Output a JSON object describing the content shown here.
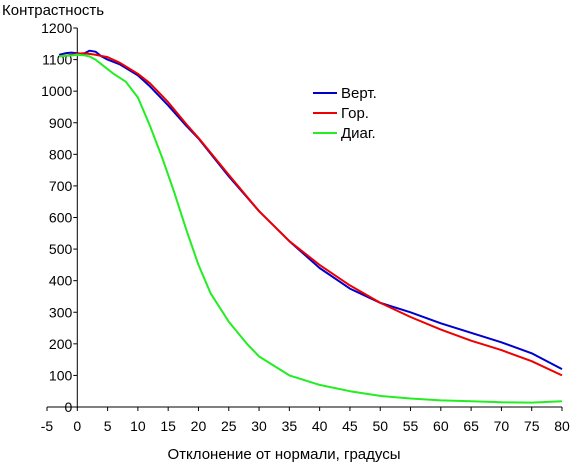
{
  "chart_data": {
    "type": "line",
    "title": "",
    "ylabel": "Контрастность",
    "xlabel": "Отклонение от нормали, градусы",
    "xlim": [
      -5,
      80
    ],
    "ylim": [
      0,
      1200
    ],
    "x_ticks": [
      -5,
      0,
      5,
      10,
      15,
      20,
      25,
      30,
      35,
      40,
      45,
      50,
      55,
      60,
      65,
      70,
      75,
      80
    ],
    "y_ticks": [
      0,
      100,
      200,
      300,
      400,
      500,
      600,
      700,
      800,
      900,
      1000,
      1100,
      1200
    ],
    "grid": false,
    "legend_position": "upper-right",
    "series": [
      {
        "name": "Верт.",
        "color": "#0000cc",
        "x": [
          -3,
          -2,
          -1,
          0,
          1,
          2,
          3,
          4,
          5,
          7,
          10,
          12,
          15,
          18,
          20,
          25,
          30,
          35,
          40,
          45,
          50,
          55,
          60,
          65,
          70,
          75,
          80
        ],
        "y": [
          1115,
          1120,
          1122,
          1120,
          1118,
          1128,
          1125,
          1110,
          1100,
          1085,
          1050,
          1015,
          955,
          890,
          850,
          730,
          620,
          525,
          440,
          375,
          330,
          300,
          265,
          235,
          205,
          170,
          120
        ]
      },
      {
        "name": "Гор.",
        "color": "#ee0000",
        "x": [
          -3,
          -2,
          -1,
          0,
          1,
          2,
          3,
          5,
          7,
          10,
          12,
          15,
          18,
          20,
          25,
          30,
          35,
          40,
          45,
          50,
          55,
          60,
          65,
          70,
          75,
          80
        ],
        "y": [
          1110,
          1112,
          1115,
          1118,
          1120,
          1118,
          1115,
          1108,
          1090,
          1055,
          1025,
          965,
          895,
          852,
          735,
          620,
          525,
          450,
          385,
          330,
          285,
          245,
          210,
          180,
          145,
          100
        ]
      },
      {
        "name": "Диаг.",
        "color": "#22ee22",
        "x": [
          -3,
          -2,
          -1,
          0,
          1,
          2,
          3,
          4,
          5,
          6,
          8,
          10,
          12,
          14,
          16,
          18,
          20,
          22,
          25,
          28,
          30,
          35,
          40,
          45,
          50,
          55,
          60,
          65,
          70,
          75,
          80
        ],
        "y": [
          1110,
          1112,
          1113,
          1115,
          1114,
          1110,
          1100,
          1085,
          1070,
          1055,
          1030,
          980,
          890,
          790,
          680,
          560,
          450,
          360,
          270,
          200,
          160,
          100,
          70,
          50,
          35,
          27,
          21,
          18,
          15,
          14,
          18
        ]
      }
    ]
  }
}
